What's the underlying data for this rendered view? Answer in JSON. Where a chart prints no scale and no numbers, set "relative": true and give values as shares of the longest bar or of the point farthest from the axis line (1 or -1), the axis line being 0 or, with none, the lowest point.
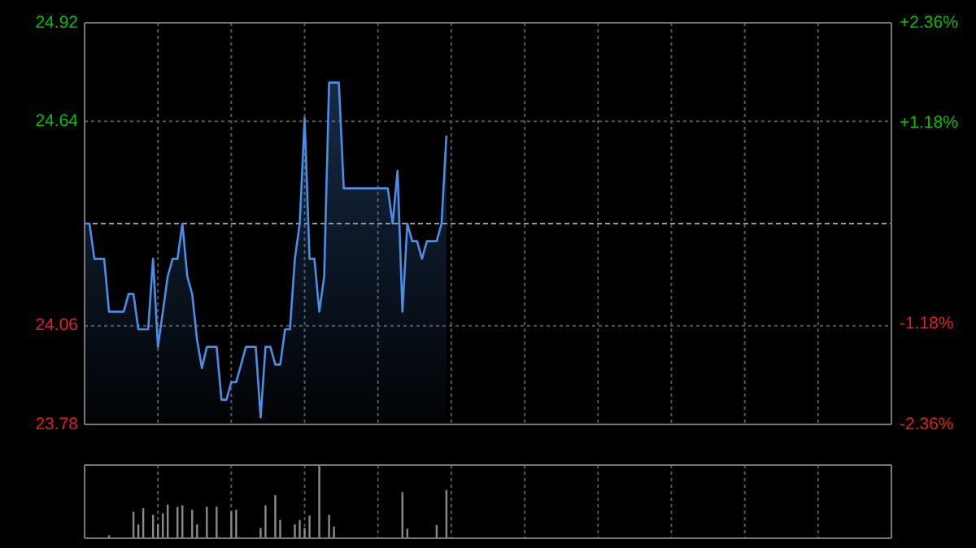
{
  "chart_data": [
    {
      "type": "area",
      "categories": [
        null,
        null,
        null,
        null,
        null,
        null,
        null,
        null,
        null,
        null,
        null,
        null,
        null,
        null,
        null,
        null,
        null,
        null,
        null,
        null,
        null,
        null,
        null,
        null,
        null,
        null,
        null,
        null,
        null,
        null,
        null,
        null,
        null,
        null,
        null,
        null,
        null,
        null,
        null,
        null,
        null,
        null,
        null,
        null,
        null,
        null,
        null,
        null,
        null,
        null,
        null,
        null,
        null,
        null,
        null,
        null,
        null,
        null,
        null,
        null,
        null,
        null,
        null,
        null,
        null,
        null,
        null,
        null,
        null,
        null,
        null,
        null,
        null,
        null,
        null,
        null,
        null,
        null,
        null,
        null,
        null,
        null,
        null,
        null,
        null,
        null,
        null,
        null,
        null,
        null,
        null,
        null,
        null,
        null,
        null,
        null,
        null,
        null,
        null,
        null,
        null,
        null,
        null,
        null,
        null,
        null,
        null,
        null,
        null,
        null,
        null,
        null,
        null,
        null,
        null,
        null,
        null,
        null,
        null,
        null,
        null,
        null,
        null,
        null,
        null,
        null,
        null,
        null,
        null,
        null,
        null,
        null,
        null,
        null,
        null,
        null,
        null,
        null,
        null,
        null,
        null,
        null,
        null,
        null,
        null,
        null,
        null,
        null,
        null,
        null,
        null,
        null,
        null,
        null,
        null,
        null,
        null,
        null,
        null,
        null,
        null,
        null,
        null,
        null,
        null,
        null
      ],
      "series": [
        {
          "color": "#4a8ee8",
          "values": [
            24.35,
            24.35,
            24.25,
            24.25,
            24.25,
            24.1,
            24.1,
            24.1,
            24.1,
            24.15,
            24.15,
            24.05,
            24.05,
            24.05,
            24.25,
            24.0,
            24.1,
            24.2,
            24.25,
            24.25,
            24.35,
            24.2,
            24.15,
            24.02,
            23.94,
            24.0,
            24.0,
            24.0,
            23.85,
            23.85,
            23.9,
            23.9,
            23.95,
            24.0,
            24.0,
            24.0,
            23.8,
            24.0,
            24.0,
            23.95,
            23.95,
            24.05,
            24.05,
            24.25,
            24.35,
            24.65,
            24.25,
            24.25,
            24.1,
            24.2,
            24.75,
            24.75,
            24.75,
            24.45,
            24.45,
            24.45,
            24.45,
            24.45,
            24.45,
            24.45,
            24.45,
            24.45,
            24.45,
            24.35,
            24.5,
            24.1,
            24.35,
            24.3,
            24.3,
            24.25,
            24.3,
            24.3,
            24.3,
            24.35,
            24.6,
            null,
            null,
            null,
            null,
            null,
            null,
            null,
            null,
            null,
            null,
            null,
            null,
            null,
            null,
            null,
            null,
            null,
            null,
            null,
            null,
            null,
            null,
            null,
            null,
            null,
            null,
            null,
            null,
            null,
            null,
            null,
            null,
            null,
            null,
            null,
            null,
            null,
            null,
            null,
            null,
            null,
            null,
            null,
            null,
            null,
            null,
            null,
            null,
            null,
            null,
            null,
            null,
            null,
            null,
            null,
            null,
            null,
            null,
            null,
            null,
            null,
            null,
            null,
            null,
            null,
            null,
            null,
            null,
            null,
            null,
            null,
            null,
            null,
            null,
            null,
            null,
            null,
            null,
            null,
            null,
            null,
            null,
            null,
            null,
            null,
            null,
            null,
            null,
            null,
            null,
            null
          ]
        }
      ],
      "ylim": [
        23.78,
        24.92
      ],
      "yticks": [
        23.78,
        24.06,
        24.64,
        24.92
      ],
      "y2lim": [
        -2.36,
        2.36
      ],
      "y2ticks": [
        {
          "value": -2.36,
          "label": "-2.36%"
        },
        {
          "value": -1.18,
          "label": "-1.18%"
        },
        {
          "value": 1.18,
          "label": "+1.18%"
        },
        {
          "value": 2.36,
          "label": "+2.36%"
        }
      ],
      "ref_lines": [
        {
          "axis": "y",
          "value": 24.35
        }
      ],
      "grid": true,
      "tick_labels": "y"
    },
    {
      "type": "bar",
      "relative": true,
      "categories": [
        null,
        null,
        null,
        null,
        null,
        null,
        null,
        null,
        null,
        null,
        null,
        null,
        null,
        null,
        null,
        null,
        null,
        null,
        null,
        null,
        null,
        null,
        null,
        null,
        null,
        null,
        null,
        null,
        null,
        null,
        null,
        null,
        null,
        null,
        null,
        null,
        null,
        null,
        null,
        null,
        null,
        null,
        null,
        null,
        null,
        null,
        null,
        null,
        null,
        null,
        null,
        null,
        null,
        null,
        null,
        null,
        null,
        null,
        null,
        null,
        null,
        null,
        null,
        null,
        null,
        null,
        null,
        null,
        null,
        null,
        null,
        null,
        null,
        null,
        null,
        null,
        null,
        null,
        null,
        null,
        null,
        null,
        null,
        null,
        null,
        null,
        null,
        null,
        null,
        null,
        null,
        null,
        null,
        null,
        null,
        null,
        null,
        null,
        null,
        null,
        null,
        null,
        null,
        null,
        null,
        null,
        null,
        null,
        null,
        null,
        null,
        null,
        null,
        null,
        null,
        null,
        null,
        null,
        null,
        null,
        null,
        null,
        null,
        null,
        null,
        null,
        null,
        null,
        null,
        null,
        null,
        null,
        null,
        null,
        null,
        null,
        null,
        null,
        null,
        null,
        null,
        null,
        null,
        null,
        null,
        null,
        null,
        null,
        null,
        null,
        null,
        null,
        null,
        null,
        null,
        null,
        null,
        null,
        null,
        null,
        null,
        null,
        null,
        null,
        null,
        null
      ],
      "series": [
        {
          "color": "#8a8a8a",
          "values": [
            null,
            null,
            null,
            null,
            null,
            0.04,
            null,
            null,
            null,
            null,
            0.36,
            0.19,
            0.41,
            null,
            0.32,
            0.19,
            0.34,
            0.46,
            null,
            0.43,
            0.45,
            null,
            0.39,
            0.19,
            null,
            0.43,
            null,
            0.43,
            null,
            null,
            0.37,
            0.39,
            null,
            null,
            null,
            null,
            0.14,
            0.45,
            null,
            0.59,
            0.25,
            null,
            null,
            0.19,
            0.25,
            0.14,
            0.31,
            null,
            1,
            null,
            0.32,
            0.16,
            null,
            null,
            null,
            null,
            null,
            null,
            null,
            null,
            null,
            null,
            null,
            null,
            null,
            0.63,
            0.13,
            null,
            null,
            null,
            null,
            null,
            0.18,
            null,
            0.66,
            null,
            null,
            null,
            null,
            null,
            null,
            null,
            null,
            null,
            null,
            null,
            null,
            null,
            null,
            null,
            null,
            null,
            null,
            null,
            null,
            null,
            null,
            null,
            null,
            null,
            null,
            null,
            null,
            null,
            null,
            null,
            null,
            null,
            null,
            null,
            null,
            null,
            null,
            null,
            null,
            null,
            null,
            null,
            null,
            null,
            null,
            null,
            null,
            null,
            null,
            null,
            null,
            null,
            null,
            null,
            null,
            null,
            null,
            null,
            null,
            null,
            null,
            null,
            null,
            null,
            null,
            null,
            null,
            null,
            null,
            null,
            null,
            null,
            null,
            null,
            null,
            null,
            null,
            null,
            null,
            null,
            null,
            null,
            null,
            null,
            null,
            null,
            null,
            null,
            null,
            null
          ]
        }
      ],
      "grid": "x",
      "tick_labels": false
    }
  ]
}
